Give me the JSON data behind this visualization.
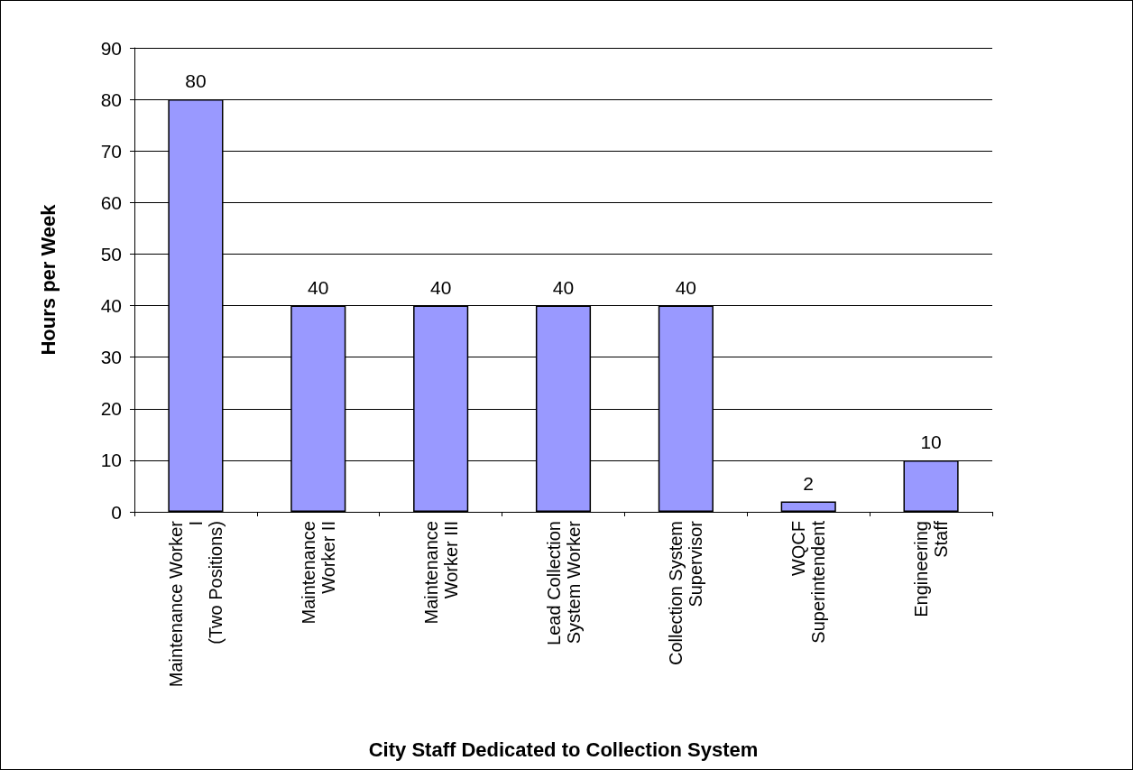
{
  "chart_data": {
    "type": "bar",
    "xlabel": "City Staff Dedicated to Collection System",
    "ylabel": "Hours per Week",
    "categories": [
      "Maintenance Worker\nI\n(Two Positions)",
      "Maintenance\nWorker II",
      "Maintenance\nWorker III",
      "Lead Collection\nSystem Worker",
      "Collection System\nSupervisor",
      "WQCF\nSuperintendent",
      "Engineering\nStaff"
    ],
    "values": [
      80,
      40,
      40,
      40,
      40,
      2,
      10
    ],
    "color": "#9999ff",
    "ylim": [
      0,
      90
    ],
    "yticks": [
      0,
      10,
      20,
      30,
      40,
      50,
      60,
      70,
      80,
      90
    ],
    "grid": "y",
    "data_labels": true
  }
}
